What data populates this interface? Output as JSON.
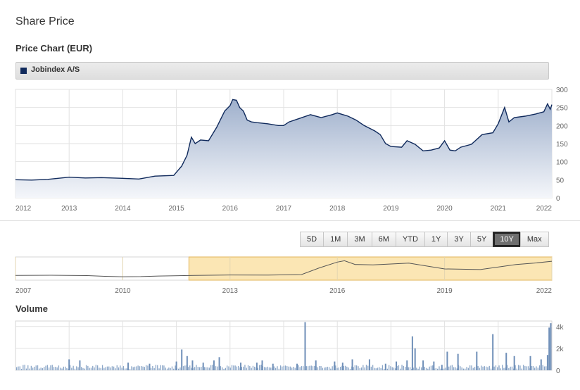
{
  "header": {
    "title": "Share Price",
    "subtitle": "Price Chart (EUR)"
  },
  "legend": {
    "label": "Jobindex A/S",
    "color": "#102a5c"
  },
  "colors": {
    "line": "#102a5c",
    "area_top": "#9fb0cc",
    "area_bottom": "#f4f6fa",
    "navigator_fill": "#fbe6b4",
    "volume_bar": "#8aa6c8"
  },
  "range_buttons": [
    {
      "label": "5D",
      "active": false
    },
    {
      "label": "1M",
      "active": false
    },
    {
      "label": "3M",
      "active": false
    },
    {
      "label": "6M",
      "active": false
    },
    {
      "label": "YTD",
      "active": false
    },
    {
      "label": "1Y",
      "active": false
    },
    {
      "label": "3Y",
      "active": false
    },
    {
      "label": "5Y",
      "active": false
    },
    {
      "label": "10Y",
      "active": true
    },
    {
      "label": "Max",
      "active": false
    }
  ],
  "volume_title": "Volume",
  "chart_data": [
    {
      "type": "area",
      "series": [
        {
          "name": "Jobindex A/S",
          "x": [
            2012.0,
            2012.3,
            2012.6,
            2013.0,
            2013.3,
            2013.6,
            2014.0,
            2014.3,
            2014.6,
            2014.95,
            2015.1,
            2015.2,
            2015.28,
            2015.35,
            2015.45,
            2015.6,
            2015.75,
            2015.9,
            2016.0,
            2016.05,
            2016.12,
            2016.18,
            2016.25,
            2016.32,
            2016.4,
            2016.5,
            2016.7,
            2016.9,
            2017.0,
            2017.1,
            2017.3,
            2017.5,
            2017.7,
            2017.9,
            2018.0,
            2018.2,
            2018.35,
            2018.5,
            2018.7,
            2018.8,
            2018.9,
            2019.0,
            2019.2,
            2019.3,
            2019.45,
            2019.6,
            2019.75,
            2019.9,
            2020.0,
            2020.1,
            2020.2,
            2020.3,
            2020.5,
            2020.7,
            2020.9,
            2021.0,
            2021.12,
            2021.2,
            2021.3,
            2021.5,
            2021.7,
            2021.85,
            2021.92,
            2021.97,
            2022.0
          ],
          "y": [
            50,
            49,
            51,
            57,
            55,
            56,
            54,
            52,
            60,
            62,
            88,
            118,
            168,
            150,
            160,
            158,
            195,
            240,
            255,
            272,
            270,
            250,
            240,
            215,
            210,
            208,
            205,
            200,
            200,
            210,
            220,
            230,
            222,
            230,
            235,
            226,
            215,
            200,
            185,
            175,
            150,
            142,
            140,
            158,
            148,
            130,
            132,
            138,
            158,
            132,
            130,
            140,
            148,
            175,
            180,
            205,
            250,
            210,
            222,
            226,
            232,
            238,
            260,
            245,
            258
          ]
        }
      ],
      "xlim": [
        2012,
        2022
      ],
      "ylim": [
        0,
        300
      ],
      "x_ticks": [
        "2012",
        "2013",
        "2014",
        "2015",
        "2016",
        "2017",
        "2018",
        "2019",
        "2020",
        "2021",
        "2022"
      ],
      "y_ticks": [
        "0",
        "50",
        "100",
        "150",
        "200",
        "250",
        "300"
      ],
      "grid": true
    },
    {
      "type": "line",
      "x": [
        2007,
        2008,
        2009,
        2009.5,
        2010,
        2010.5,
        2011,
        2012,
        2013,
        2014,
        2015,
        2015.5,
        2016,
        2016.2,
        2016.5,
        2017,
        2018,
        2019,
        2020,
        2021,
        2021.5,
        2022
      ],
      "y": [
        50,
        52,
        47,
        36,
        30,
        32,
        40,
        50,
        56,
        54,
        62,
        160,
        245,
        265,
        210,
        205,
        230,
        145,
        135,
        210,
        230,
        258
      ],
      "xlim": [
        2007,
        2022
      ],
      "x_ticks": [
        "2007",
        "2010",
        "2013",
        "2016",
        "2019",
        "2022"
      ],
      "selected_range": [
        2011.85,
        2022
      ]
    },
    {
      "type": "bar",
      "x": [
        2013.0,
        2013.2,
        2014.1,
        2014.5,
        2015.0,
        2015.1,
        2015.2,
        2015.3,
        2015.5,
        2015.7,
        2015.8,
        2016.2,
        2016.5,
        2016.6,
        2016.8,
        2017.25,
        2017.4,
        2017.6,
        2017.95,
        2018.1,
        2018.28,
        2018.6,
        2018.9,
        2019.1,
        2019.3,
        2019.4,
        2019.45,
        2019.6,
        2019.8,
        2019.95,
        2020.05,
        2020.25,
        2020.6,
        2020.9,
        2021.15,
        2021.3,
        2021.6,
        2021.8,
        2021.92,
        2021.95,
        2021.98
      ],
      "values": [
        1000,
        900,
        700,
        600,
        800,
        1900,
        1300,
        900,
        700,
        900,
        1200,
        700,
        700,
        900,
        600,
        600,
        4400,
        900,
        800,
        700,
        1000,
        1000,
        600,
        800,
        900,
        3100,
        2000,
        900,
        800,
        500,
        1700,
        1500,
        1700,
        3300,
        1600,
        1300,
        1300,
        1000,
        1400,
        3900,
        4300
      ],
      "baseline": 300,
      "xlim": [
        2012,
        2022
      ],
      "ylim": [
        0,
        4500
      ],
      "y_ticks": [
        "0",
        "2k",
        "4k"
      ],
      "grid": true
    }
  ]
}
